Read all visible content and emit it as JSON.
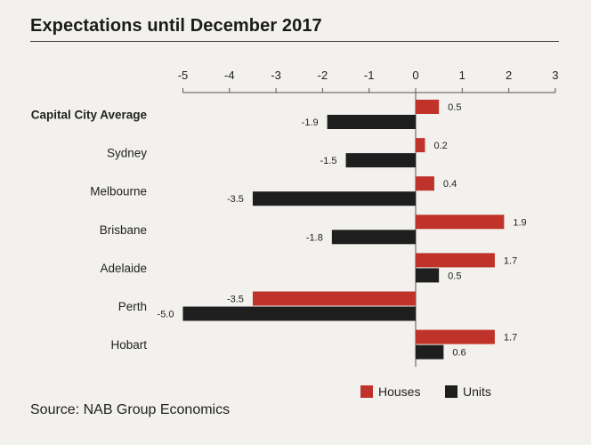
{
  "title": "Expectations until December 2017",
  "source": "Source: NAB Group Economics",
  "colors": {
    "houses": "#c0332b",
    "units": "#1e1e1e",
    "background": "#f2f1ee",
    "axis": "#555555"
  },
  "chart_data": {
    "type": "bar",
    "orientation": "horizontal",
    "title": "Expectations until December 2017",
    "categories": [
      "Capital City Average",
      "Sydney",
      "Melbourne",
      "Brisbane",
      "Adelaide",
      "Perth",
      "Hobart"
    ],
    "bold_categories": [
      "Capital City Average"
    ],
    "series": [
      {
        "name": "Houses",
        "color": "#c0332b",
        "values": [
          0.5,
          0.2,
          0.4,
          1.9,
          1.7,
          -3.5,
          1.7
        ]
      },
      {
        "name": "Units",
        "color": "#1e1e1e",
        "values": [
          -1.9,
          -1.5,
          -3.5,
          -1.8,
          0.5,
          -5.0,
          0.6
        ]
      }
    ],
    "value_labels": {
      "Houses": [
        "0.5",
        "0.2",
        "0.4",
        "1.9",
        "1.7",
        "-3.5",
        "1.7"
      ],
      "Units": [
        "-1.9",
        "-1.5",
        "-3.5",
        "-1.8",
        "0.5",
        "-5.0",
        "0.6"
      ]
    },
    "xticks": [
      -5,
      -4,
      -3,
      -2,
      -1,
      0,
      1,
      2,
      3
    ],
    "xlim": [
      -5,
      3
    ],
    "xaxis_position": "top",
    "grid": false,
    "legend": {
      "position": "bottom-right",
      "entries": [
        "Houses",
        "Units"
      ]
    }
  }
}
